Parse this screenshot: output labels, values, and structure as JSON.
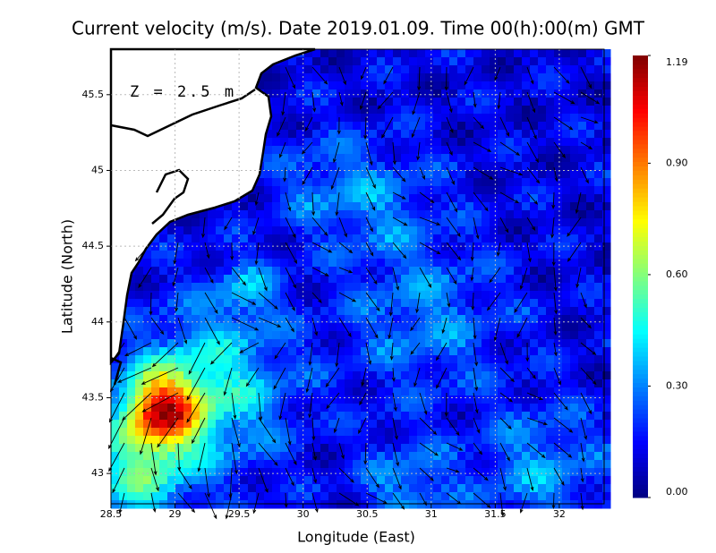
{
  "chart_data": {
    "type": "vector-field-map",
    "title": "Current velocity (m/s). Date 2019.01.09. Time 00(h):00(m) GMT",
    "annotation": "Z = 2.5 m",
    "x_label": "Longitude (East)",
    "y_label": "Latitude (North)",
    "xlim": [
      28.5,
      32.35
    ],
    "ylim": [
      42.8,
      45.8
    ],
    "xticks": [
      28.5,
      29,
      29.5,
      30,
      30.5,
      31,
      31.5,
      32
    ],
    "yticks": [
      43,
      43.5,
      44,
      44.5,
      45,
      45.5
    ],
    "colorbar_lim": [
      0,
      1.19
    ],
    "colorbar_ticks": [
      {
        "value": 0,
        "label": "0.00"
      },
      {
        "value": 0.3,
        "label": "0.30"
      },
      {
        "value": 0.6,
        "label": "0.60"
      },
      {
        "value": 0.9,
        "label": "0.90"
      },
      1.19
    ],
    "grid": true
  }
}
